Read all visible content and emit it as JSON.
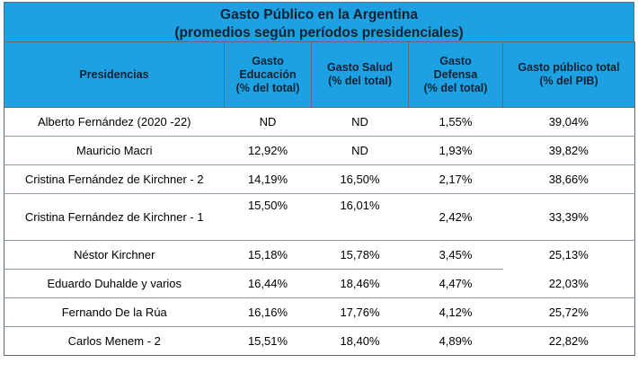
{
  "title": {
    "line1": "Gasto Público en la Argentina",
    "line2": "(promedios según períodos presidenciales)"
  },
  "headers": {
    "presidencias": "Presidencias",
    "educacion_1": "Gasto",
    "educacion_2": "Educación",
    "educacion_3": "(% del total)",
    "salud_1": "Gasto Salud",
    "salud_2": "(% del total)",
    "defensa_1": "Gasto",
    "defensa_2": "Defensa",
    "defensa_3": "(% del total)",
    "total_1": "Gasto público total",
    "total_2": "(% del PIB)"
  },
  "rows": [
    {
      "presidencia": "Alberto Fernández (2020 -22)",
      "educacion": "ND",
      "salud": "ND",
      "defensa": "1,55%",
      "total": "39,04%"
    },
    {
      "presidencia": "Mauricio Macri",
      "educacion": "12,92%",
      "salud": "ND",
      "defensa": "1,93%",
      "total": "39,82%"
    },
    {
      "presidencia": "Cristina Fernández de Kirchner - 2",
      "educacion": "14,19%",
      "salud": "16,50%",
      "defensa": "2,17%",
      "total": "38,66%"
    },
    {
      "presidencia": "Cristina Fernández de Kirchner - 1",
      "educacion": "15,50%",
      "salud": "16,01%",
      "defensa": "2,42%",
      "total": "33,39%"
    },
    {
      "presidencia": "Néstor Kirchner",
      "educacion": "15,18%",
      "salud": "15,78%",
      "defensa": "3,45%",
      "total": "25,13%"
    },
    {
      "presidencia": "Eduardo Duhalde y varios",
      "educacion": "16,44%",
      "salud": "18,46%",
      "defensa": "4,47%",
      "total": "22,03%"
    },
    {
      "presidencia": "Fernando De la Rúa",
      "educacion": "16,16%",
      "salud": "17,76%",
      "defensa": "4,12%",
      "total": "25,72%"
    },
    {
      "presidencia": "Carlos Menem - 2",
      "educacion": "15,51%",
      "salud": "18,40%",
      "defensa": "4,89%",
      "total": "22,82%"
    }
  ]
}
